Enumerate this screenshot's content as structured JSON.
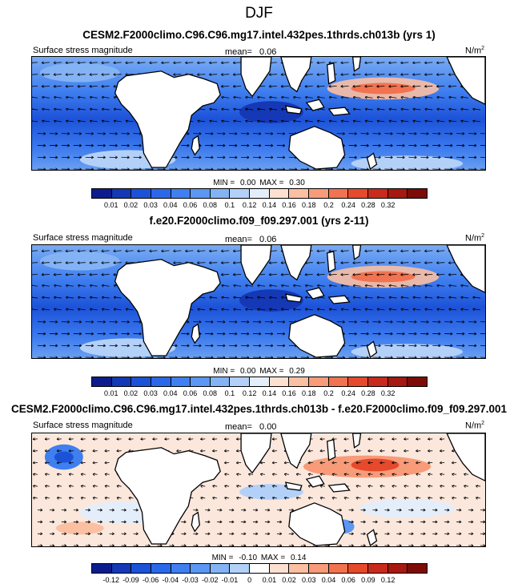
{
  "title": "DJF",
  "units_label": "N/m",
  "units_exp": "2",
  "panels": [
    {
      "title": "CESM2.F2000climo.C96.C96.mg17.intel.432pes.1thrds.ch013b (yrs 1)",
      "variable": "Surface stress magnitude",
      "mean_label": "mean=",
      "mean": "0.06",
      "min_label": "MIN =",
      "min": "0.00",
      "max_label": "MAX =",
      "max": "0.30",
      "ticks": [
        "0.01",
        "0.02",
        "0.03",
        "0.04",
        "0.06",
        "0.08",
        "0.1",
        "0.12",
        "0.14",
        "0.16",
        "0.18",
        "0.2",
        "0.24",
        "0.28",
        "0.32"
      ],
      "colors": [
        "#0d1c8d",
        "#1438b6",
        "#1c52d8",
        "#2a68ea",
        "#3f7ff0",
        "#5b97f3",
        "#84b3f5",
        "#b3d0f8",
        "#e4eefb",
        "#fde0cf",
        "#fbbfa2",
        "#f79b79",
        "#f27350",
        "#e64a2c",
        "#c82b1c",
        "#a51910",
        "#7d0b08"
      ]
    },
    {
      "title": "f.e20.F2000climo.f09_f09.297.001 (yrs 2-11)",
      "variable": "Surface stress magnitude",
      "mean_label": "mean=",
      "mean": "0.06",
      "min_label": "MIN =",
      "min": "0.00",
      "max_label": "MAX =",
      "max": "0.29",
      "ticks": [
        "0.01",
        "0.02",
        "0.03",
        "0.04",
        "0.06",
        "0.08",
        "0.1",
        "0.12",
        "0.14",
        "0.16",
        "0.18",
        "0.2",
        "0.24",
        "0.28",
        "0.32"
      ],
      "colors": [
        "#0d1c8d",
        "#1438b6",
        "#1c52d8",
        "#2a68ea",
        "#3f7ff0",
        "#5b97f3",
        "#84b3f5",
        "#b3d0f8",
        "#e4eefb",
        "#fde0cf",
        "#fbbfa2",
        "#f79b79",
        "#f27350",
        "#e64a2c",
        "#c82b1c",
        "#a51910",
        "#7d0b08"
      ]
    },
    {
      "title": "CESM2.F2000climo.C96.C96.mg17.intel.432pes.1thrds.ch013b - f.e20.F2000climo.f09_f09.297.001",
      "variable": "Surface stress magnitude",
      "mean_label": "mean=",
      "mean": "0.00",
      "min_label": "MIN =",
      "min": "-0.10",
      "max_label": "MAX =",
      "max": "0.14",
      "ticks": [
        "-0.12",
        "-0.09",
        "-0.06",
        "-0.04",
        "-0.03",
        "-0.02",
        "-0.01",
        "0",
        "0.01",
        "0.02",
        "0.03",
        "0.04",
        "0.06",
        "0.09",
        "0.12"
      ],
      "colors": [
        "#0d1c8d",
        "#1438b6",
        "#1c52d8",
        "#2a68ea",
        "#3f7ff0",
        "#5b97f3",
        "#84b3f5",
        "#b3d0f8",
        "#ffffff",
        "#fde0cf",
        "#fbbfa2",
        "#f79b79",
        "#f27350",
        "#e64a2c",
        "#c82b1c",
        "#a51910",
        "#7d0b08"
      ]
    }
  ]
}
